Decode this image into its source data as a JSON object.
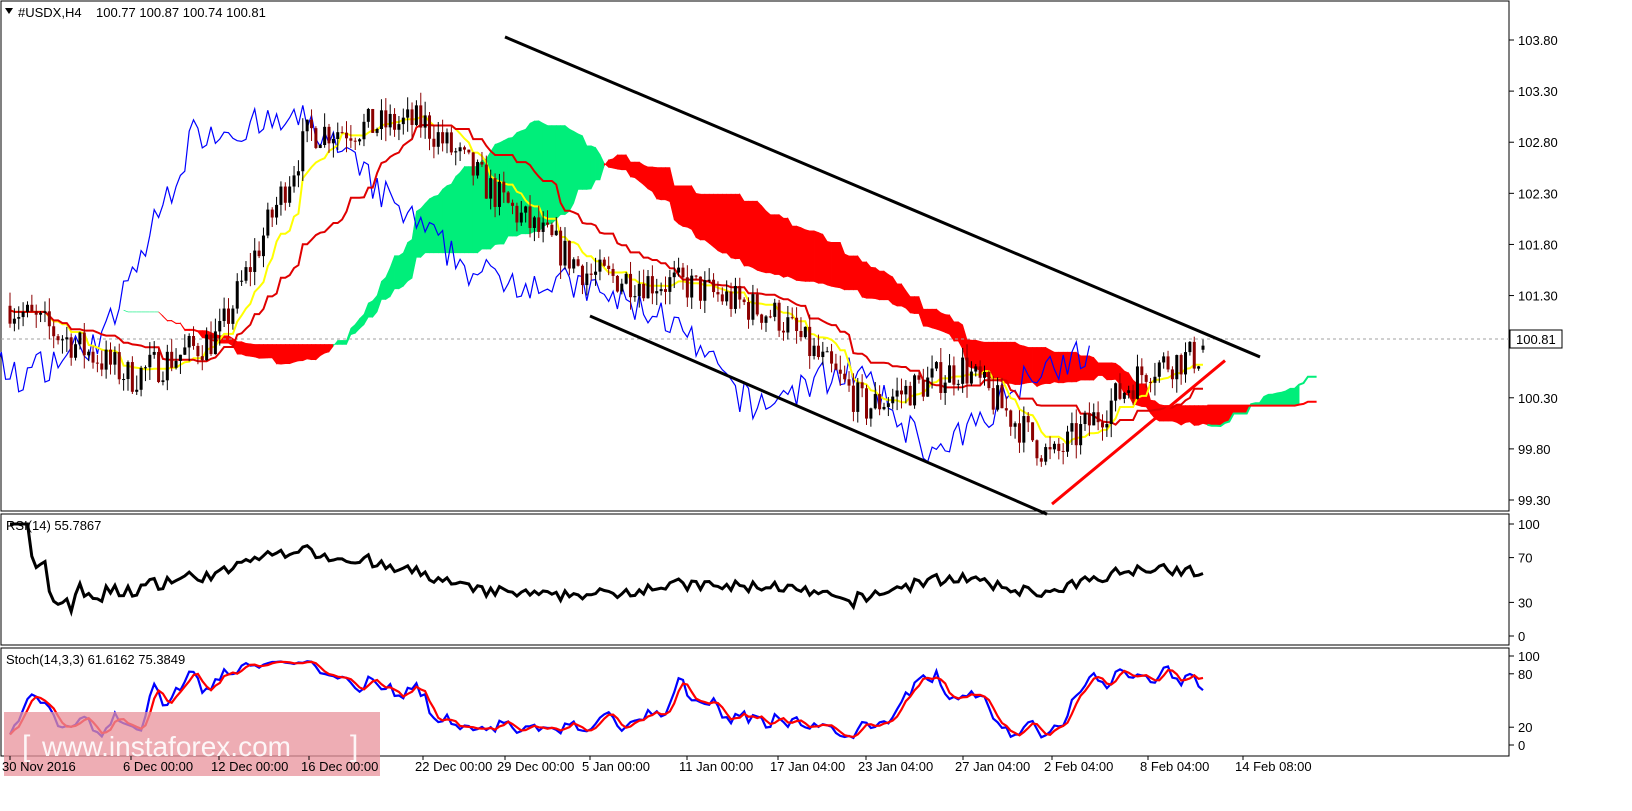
{
  "header": {
    "symbol": "#USDX,H4",
    "ohlc": "100.77 100.87 100.74 100.81"
  },
  "price_panel": {
    "y_ticks": [
      "103.80",
      "103.30",
      "102.80",
      "102.30",
      "101.80",
      "101.30",
      "100.30",
      "99.80",
      "99.30"
    ],
    "current_price": "100.81"
  },
  "rsi_panel": {
    "label": "RSI(14) 55.7867",
    "y_ticks": [
      "100",
      "70",
      "30",
      "0"
    ]
  },
  "stoch_panel": {
    "label": "Stoch(14,3,3) 61.6162 75.3849",
    "y_ticks": [
      "100",
      "80",
      "20",
      "0"
    ]
  },
  "x_axis": {
    "labels": [
      "30 Nov 2016",
      "6 Dec 00:00",
      "12 Dec 00:00",
      "16 Dec 00:00",
      "22 Dec 00:00",
      "29 Dec 00:00",
      "5 Jan 00:00",
      "11 Jan 00:00",
      "17 Jan 04:00",
      "23 Jan 04:00",
      "27 Jan 04:00",
      "2 Feb 04:00",
      "8 Feb 04:00",
      "14 Feb 08:00"
    ]
  },
  "watermark": "www.instaforex.com",
  "colors": {
    "candle_up": "#000000",
    "candle_down": "#8b0000",
    "kijun": "#e00000",
    "tenkan": "#ffff00",
    "chikou": "#0000ff",
    "cloud_bull": "#00ee7a",
    "cloud_bear": "#ff0000",
    "rsi": "#000000",
    "stoch_main": "#0000ff",
    "stoch_signal": "#ff0000",
    "channel": "#000000",
    "support": "#ff0000"
  },
  "chart_data": {
    "type": "line",
    "instrument": "#USDX",
    "timeframe": "H4",
    "x": [
      "30 Nov 2016",
      "6 Dec 00:00",
      "12 Dec 00:00",
      "16 Dec 00:00",
      "22 Dec 00:00",
      "29 Dec 00:00",
      "5 Jan 00:00",
      "11 Jan 00:00",
      "17 Jan 04:00",
      "23 Jan 04:00",
      "27 Jan 04:00",
      "2 Feb 04:00",
      "8 Feb 04:00",
      "14 Feb 08:00"
    ],
    "series": [
      {
        "name": "close",
        "values": [
          101.2,
          100.5,
          100.9,
          102.9,
          103.0,
          102.2,
          101.5,
          101.4,
          101.1,
          100.2,
          100.6,
          99.7,
          100.6,
          100.81
        ]
      },
      {
        "name": "RSI(14)",
        "values": [
          50,
          40,
          52,
          78,
          58,
          42,
          38,
          45,
          40,
          35,
          55,
          35,
          58,
          55.7867
        ]
      },
      {
        "name": "Stoch(14,3,3)",
        "values": [
          50,
          20,
          85,
          70,
          60,
          25,
          60,
          70,
          15,
          20,
          75,
          20,
          80,
          61.6162
        ]
      }
    ],
    "ohlc_last": {
      "open": 100.77,
      "high": 100.87,
      "low": 100.74,
      "close": 100.81
    },
    "rsi_last": 55.7867,
    "stoch_last": {
      "main": 61.6162,
      "signal": 75.3849
    },
    "ylim": [
      99.1,
      104.0
    ],
    "y_ticks": [
      103.8,
      103.3,
      102.8,
      102.3,
      101.8,
      101.3,
      100.3,
      99.8,
      99.3
    ],
    "channel_top": [
      {
        "x": "29 Dec 00:00",
        "y": 103.83
      },
      {
        "x": "14 Feb 08:00",
        "y": 100.77
      }
    ],
    "channel_bottom": [
      {
        "x": "5 Jan 00:00",
        "y": 101.1
      },
      {
        "x": "2 Feb 04:00",
        "y": 99.14
      }
    ],
    "support_line": [
      {
        "x": "2 Feb 04:00",
        "y": 99.26
      },
      {
        "x": "14 Feb 08:00",
        "y": 100.81
      }
    ]
  }
}
